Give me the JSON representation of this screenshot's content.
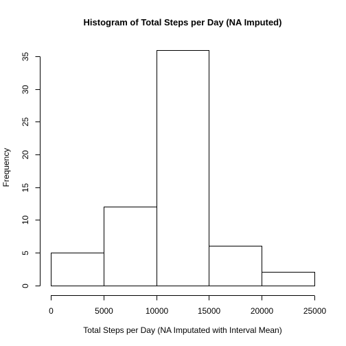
{
  "chart_data": {
    "type": "bar",
    "title": "Histogram of Total Steps per Day (NA Imputed)",
    "xlabel": "Total Steps per Day (NA Imputated with Interval Mean)",
    "ylabel": "Frequency",
    "bins": [
      {
        "from": 0,
        "to": 5000,
        "count": 5
      },
      {
        "from": 5000,
        "to": 10000,
        "count": 12
      },
      {
        "from": 10000,
        "to": 15000,
        "count": 36
      },
      {
        "from": 15000,
        "to": 20000,
        "count": 6
      },
      {
        "from": 20000,
        "to": 25000,
        "count": 2
      }
    ],
    "xlim": [
      0,
      25000
    ],
    "ylim": [
      0,
      36
    ],
    "x_ticks": [
      0,
      5000,
      10000,
      15000,
      20000,
      25000
    ],
    "x_tick_labels": [
      "0",
      "5000",
      "10000",
      "15000",
      "20000",
      "25000"
    ],
    "y_ticks": [
      0,
      5,
      10,
      15,
      20,
      25,
      30,
      35
    ],
    "y_tick_labels": [
      "0",
      "5",
      "10",
      "15",
      "20",
      "25",
      "30",
      "35"
    ],
    "grid": false,
    "bar_fill": "#ffffff",
    "bar_stroke": "#000000"
  }
}
